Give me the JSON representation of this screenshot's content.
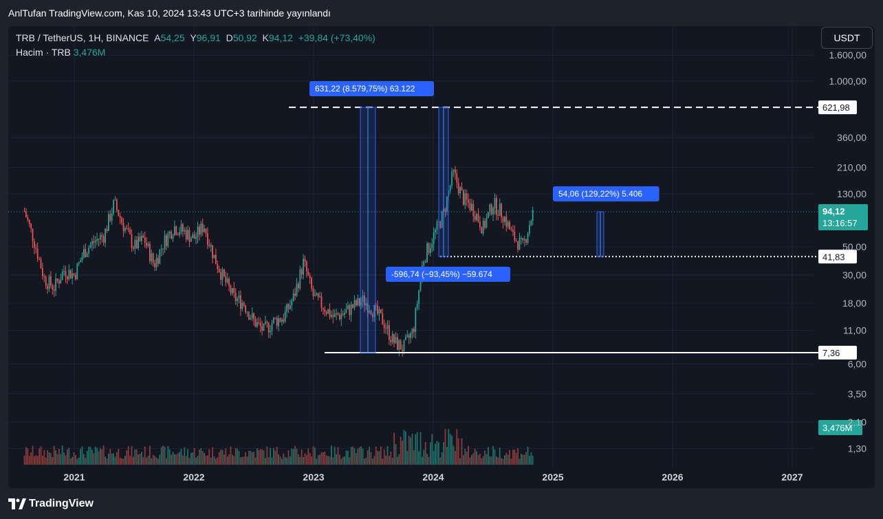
{
  "header": {
    "publish_text": "AnlTufan TradingView.com, Kas 10, 2024 13:43 UTC+3 tarihinde yayınlandı"
  },
  "legend": {
    "symbol": "TRB / TetherUS, 1H, BINANCE",
    "open_label": "A",
    "open": "54,25",
    "high_label": "Y",
    "high": "96,91",
    "low_label": "D",
    "low": "50,92",
    "close_label": "K",
    "close": "94,12",
    "change": "+39,84 (+73,40%)",
    "volume_label": "Hacim · TRB",
    "volume": "3,476M"
  },
  "currency_button": "USDT",
  "footer": {
    "brand": "TradingView"
  },
  "colors": {
    "up": "#26a69a",
    "down": "#ef5350",
    "bg": "#131722",
    "measure": "#2962ff"
  },
  "chart_data": {
    "type": "candlestick",
    "price_scale": "log",
    "y_ticks": [
      {
        "v": 1600,
        "label": "1.600,00"
      },
      {
        "v": 1000,
        "label": "1.000,00"
      },
      {
        "v": 360,
        "label": "360,00"
      },
      {
        "v": 210,
        "label": "210,00"
      },
      {
        "v": 130,
        "label": "130,00"
      },
      {
        "v": 50,
        "label": "50,00"
      },
      {
        "v": 30,
        "label": "30,00"
      },
      {
        "v": 18,
        "label": "18,00"
      },
      {
        "v": 11,
        "label": "11,00"
      },
      {
        "v": 6,
        "label": "6,00"
      },
      {
        "v": 3.5,
        "label": "3,50"
      },
      {
        "v": 2.1,
        "label": "2,10"
      },
      {
        "v": 1.3,
        "label": "1,30"
      }
    ],
    "x_ticks": [
      "2021",
      "2022",
      "2023",
      "2024",
      "2025",
      "2026",
      "2027"
    ],
    "x_range": [
      "2020-08",
      "2027-06"
    ],
    "price_series": [
      [
        "2020-08",
        95
      ],
      [
        "2020-09",
        55
      ],
      [
        "2020-10",
        28
      ],
      [
        "2020-11",
        24
      ],
      [
        "2020-12",
        33
      ],
      [
        "2021-01",
        30
      ],
      [
        "2021-02",
        46
      ],
      [
        "2021-03",
        55
      ],
      [
        "2021-04",
        62
      ],
      [
        "2021-05",
        110
      ],
      [
        "2021-06",
        72
      ],
      [
        "2021-07",
        50
      ],
      [
        "2021-08",
        58
      ],
      [
        "2021-09",
        36
      ],
      [
        "2021-10",
        55
      ],
      [
        "2021-11",
        72
      ],
      [
        "2021-12",
        66
      ],
      [
        "2022-01",
        58
      ],
      [
        "2022-02",
        74
      ],
      [
        "2022-03",
        42
      ],
      [
        "2022-04",
        28
      ],
      [
        "2022-05",
        20
      ],
      [
        "2022-06",
        18
      ],
      [
        "2022-07",
        13
      ],
      [
        "2022-08",
        11
      ],
      [
        "2022-09",
        13
      ],
      [
        "2022-10",
        14
      ],
      [
        "2022-11",
        20
      ],
      [
        "2022-12",
        38
      ],
      [
        "2023-01",
        20
      ],
      [
        "2023-02",
        17
      ],
      [
        "2023-03",
        14
      ],
      [
        "2023-04",
        15
      ],
      [
        "2023-05",
        17
      ],
      [
        "2023-06",
        19
      ],
      [
        "2023-07",
        16
      ],
      [
        "2023-08",
        13
      ],
      [
        "2023-09",
        9
      ],
      [
        "2023-10",
        8
      ],
      [
        "2023-11",
        11
      ],
      [
        "2023-12",
        40
      ],
      [
        "2024-01",
        60
      ],
      [
        "2024-02",
        90
      ],
      [
        "2024-03",
        190
      ],
      [
        "2024-04",
        120
      ],
      [
        "2024-05",
        100
      ],
      [
        "2024-06",
        70
      ],
      [
        "2024-07",
        110
      ],
      [
        "2024-08",
        90
      ],
      [
        "2024-09",
        60
      ],
      [
        "2024-10",
        50
      ],
      [
        "2024-11",
        94.12
      ]
    ],
    "horizontal_levels": [
      {
        "value": 621.98,
        "label": "621,98",
        "style": "dashed"
      },
      {
        "value": 41.83,
        "label": "41,83",
        "style": "dotted"
      },
      {
        "value": 7.36,
        "label": "7,36",
        "style": "solid"
      }
    ],
    "last_price": {
      "value": 94.12,
      "label": "94,12",
      "countdown": "13:16:57"
    },
    "volume_label": "3,476M",
    "measurements": [
      {
        "text": "631,22 (8.579,75%) 63.122",
        "from": 7.36,
        "to": 621.98
      },
      {
        "text": "-596,74 (−93,45%) −59.674",
        "from": 621.98,
        "to": 41.83
      },
      {
        "text": "54,06 (129,22%) 5.406",
        "from": 41.83,
        "to": 94.12
      }
    ]
  }
}
